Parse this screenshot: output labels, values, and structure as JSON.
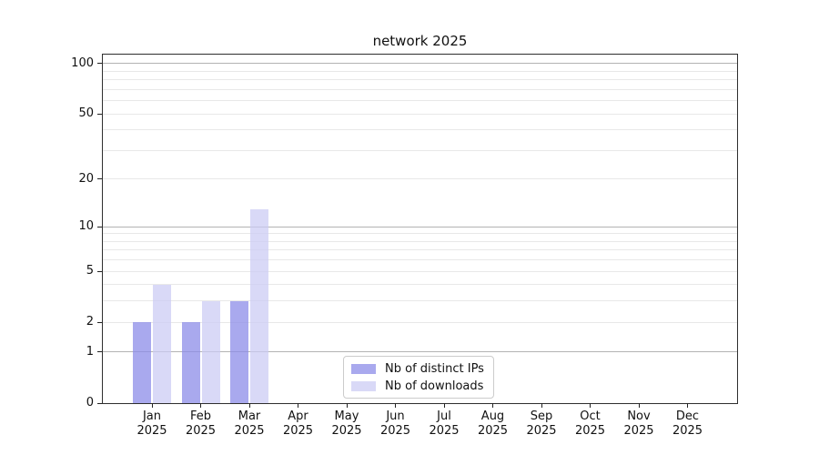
{
  "chart_data": {
    "type": "bar",
    "title": "network 2025",
    "months": [
      "Jan",
      "Feb",
      "Mar",
      "Apr",
      "May",
      "Jun",
      "Jul",
      "Aug",
      "Sep",
      "Oct",
      "Nov",
      "Dec"
    ],
    "year": "2025",
    "categories": [
      "Jan 2025",
      "Feb 2025",
      "Mar 2025",
      "Apr 2025",
      "May 2025",
      "Jun 2025",
      "Jul 2025",
      "Aug 2025",
      "Sep 2025",
      "Oct 2025",
      "Nov 2025",
      "Dec 2025"
    ],
    "series": [
      {
        "name": "Nb of distinct IPs",
        "color": "rgba(140,140,232,0.75)",
        "values": [
          2,
          2,
          3,
          0,
          0,
          0,
          0,
          0,
          0,
          0,
          0,
          0
        ]
      },
      {
        "name": "Nb of downloads",
        "color": "rgba(203,203,244,0.72)",
        "values": [
          4,
          3,
          13,
          0,
          0,
          0,
          0,
          0,
          0,
          0,
          0,
          0
        ]
      }
    ],
    "xlabel": "",
    "ylabel": "",
    "yscale": "log1p",
    "ylim": [
      0,
      113
    ],
    "yticks": [
      0,
      1,
      2,
      5,
      10,
      20,
      50,
      100
    ],
    "grid": {
      "orientation": "horizontal",
      "major_lines": [
        1,
        10,
        100
      ],
      "minor_lines": [
        2,
        3,
        4,
        5,
        6,
        7,
        8,
        9,
        20,
        30,
        40,
        50,
        60,
        70,
        80,
        90
      ]
    },
    "legend": {
      "position": "lower center",
      "entries": [
        "Nb of distinct IPs",
        "Nb of downloads"
      ]
    }
  },
  "colors": {
    "background": "#ffffff",
    "spine": "#2e2e2e",
    "tick": "#222222",
    "text": "#111111",
    "grid_major": "#b3b3b3",
    "grid_minor": "#e8e8e8",
    "legend_border": "#cccccc",
    "bar_distinct_ips": "rgba(140,140,232,0.75)",
    "bar_downloads": "rgba(203,203,244,0.72)"
  }
}
